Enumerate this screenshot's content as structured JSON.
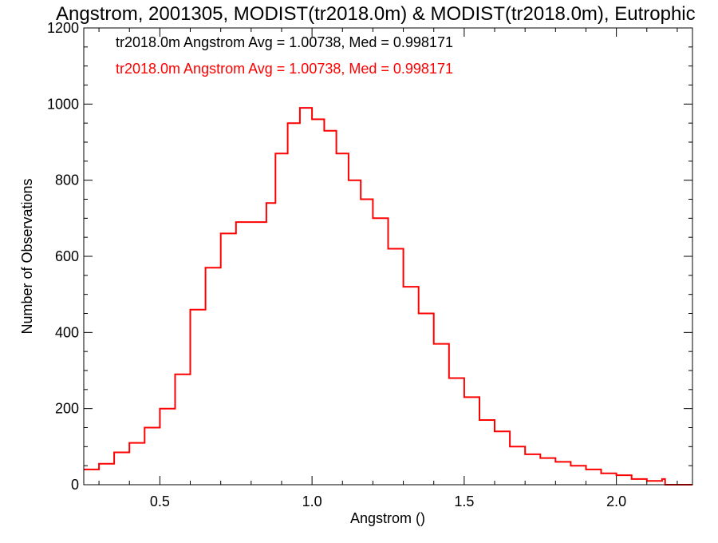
{
  "chart_data": {
    "type": "line",
    "title": "Angstrom, 2001305, MODIST(tr2018.0m) & MODIST(tr2018.0m), Eutrophic",
    "xlabel": "Angstrom ()",
    "ylabel": "Number of Observations",
    "xlim": [
      0.25,
      2.25
    ],
    "ylim": [
      0,
      1200
    ],
    "xticks": [
      0.5,
      1.0,
      1.5,
      2.0
    ],
    "xtick_labels": [
      "0.5",
      "1.0",
      "1.5",
      "2.0"
    ],
    "yticks": [
      0,
      200,
      400,
      600,
      800,
      1000,
      1200
    ],
    "ytick_labels": [
      "0",
      "200",
      "400",
      "600",
      "800",
      "1000",
      "1200"
    ],
    "grid": false,
    "legend_position": "top-left",
    "annotations": [
      {
        "text": "tr2018.0m Angstrom Avg = 1.00738, Med = 0.998171",
        "color": "#000000"
      },
      {
        "text": "tr2018.0m Angstrom Avg = 1.00738, Med = 0.998171",
        "color": "#ff0000"
      }
    ],
    "series": [
      {
        "color": "#ff0000",
        "style": "step",
        "x": [
          0.25,
          0.3,
          0.35,
          0.4,
          0.45,
          0.5,
          0.55,
          0.6,
          0.65,
          0.7,
          0.75,
          0.8,
          0.85,
          0.88,
          0.92,
          0.96,
          1.0,
          1.04,
          1.08,
          1.12,
          1.16,
          1.2,
          1.25,
          1.3,
          1.35,
          1.4,
          1.45,
          1.5,
          1.55,
          1.6,
          1.65,
          1.7,
          1.75,
          1.8,
          1.85,
          1.9,
          1.95,
          2.0,
          2.05,
          2.1,
          2.15,
          2.16,
          2.25
        ],
        "y": [
          40,
          55,
          85,
          110,
          150,
          200,
          290,
          460,
          570,
          660,
          690,
          690,
          740,
          870,
          950,
          990,
          960,
          930,
          870,
          800,
          750,
          700,
          620,
          520,
          450,
          370,
          280,
          230,
          170,
          140,
          100,
          80,
          70,
          60,
          50,
          40,
          30,
          25,
          15,
          10,
          15,
          0,
          0
        ]
      }
    ]
  }
}
